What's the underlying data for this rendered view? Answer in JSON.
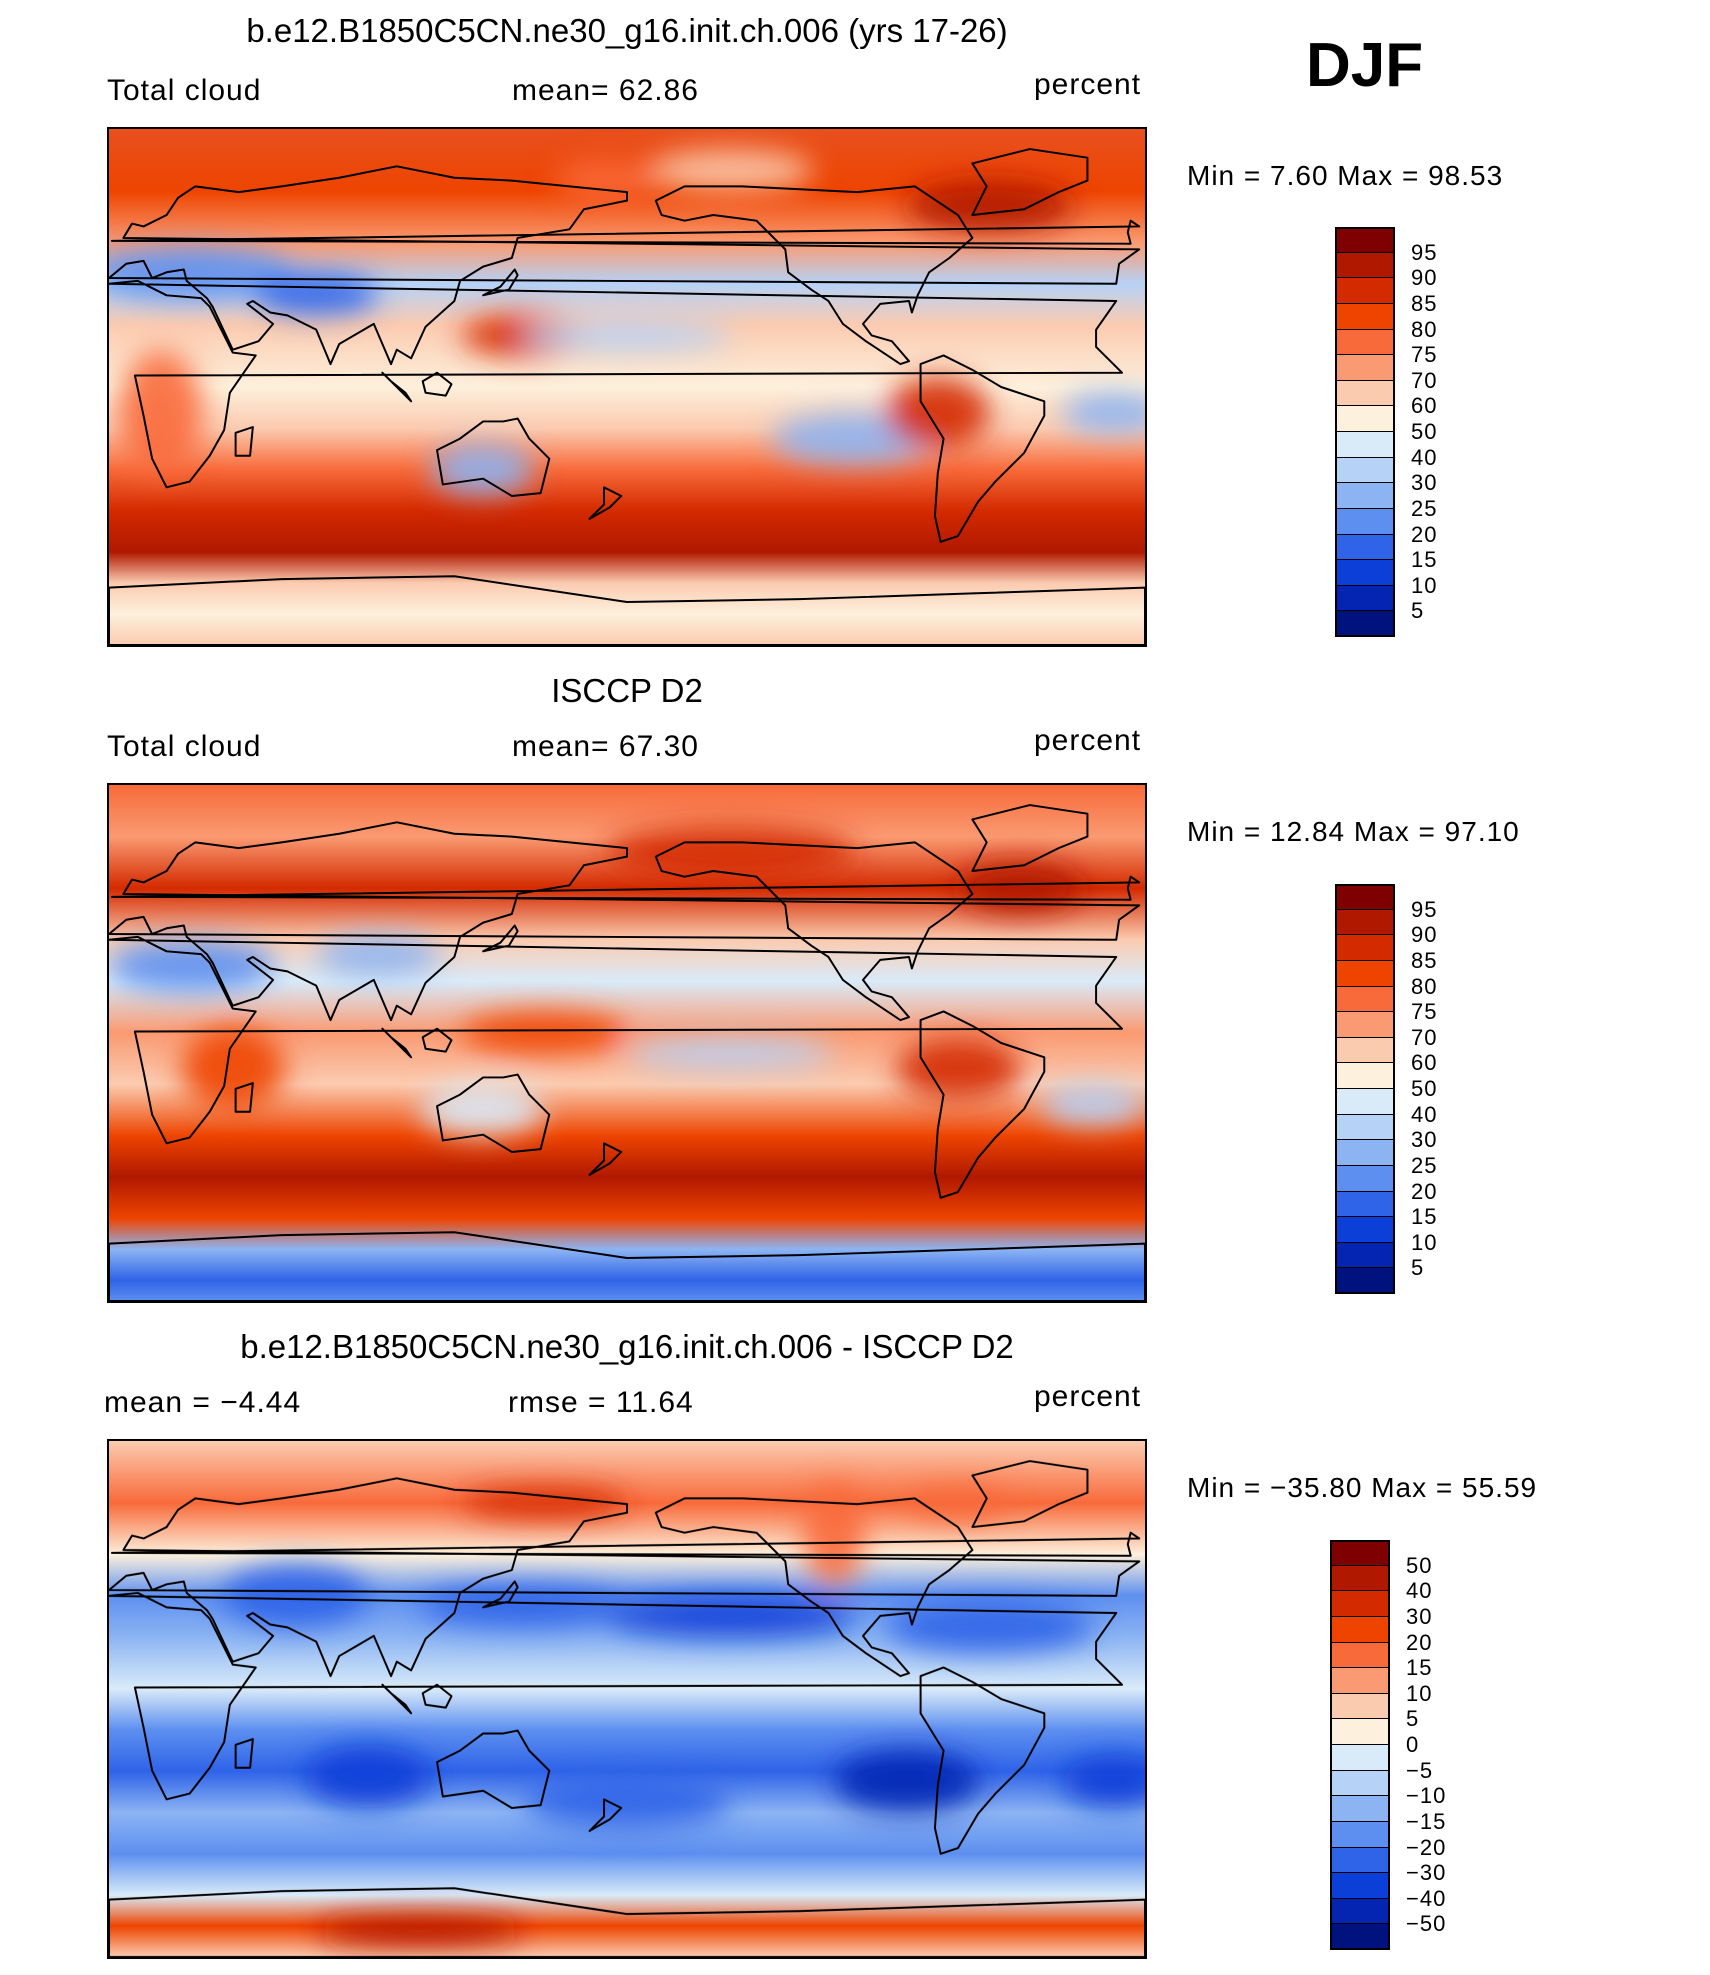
{
  "season": "DJF",
  "panels": [
    {
      "title": "b.e12.B1850C5CN.ne30_g16.init.ch.006 (yrs 17-26)",
      "left_text": "Total cloud",
      "center_text": "mean=   62.86",
      "right_text": "percent",
      "minmax": "Min =   7.60 Max =   98.53",
      "colorbar": {
        "colors": [
          "#7f0000",
          "#b01800",
          "#d42a00",
          "#ee4400",
          "#f86a3a",
          "#fa9a72",
          "#fbcbb0",
          "#fdf0dc",
          "#d9ebf9",
          "#b6d2f7",
          "#8cb4f3",
          "#5d8ff0",
          "#2f63e8",
          "#0c3ed8",
          "#0424b2",
          "#00127e"
        ],
        "labels": [
          "95",
          "90",
          "85",
          "80",
          "75",
          "70",
          "60",
          "50",
          "40",
          "30",
          "25",
          "20",
          "15",
          "10",
          "5"
        ]
      }
    },
    {
      "title": "ISCCP D2",
      "left_text": "Total cloud",
      "center_text": "mean=   67.30",
      "right_text": "percent",
      "minmax": "Min =  12.84 Max =   97.10",
      "colorbar": {
        "colors": [
          "#7f0000",
          "#b01800",
          "#d42a00",
          "#ee4400",
          "#f86a3a",
          "#fa9a72",
          "#fbcbb0",
          "#fdf0dc",
          "#d9ebf9",
          "#b6d2f7",
          "#8cb4f3",
          "#5d8ff0",
          "#2f63e8",
          "#0c3ed8",
          "#0424b2",
          "#00127e"
        ],
        "labels": [
          "95",
          "90",
          "85",
          "80",
          "75",
          "70",
          "60",
          "50",
          "40",
          "30",
          "25",
          "20",
          "15",
          "10",
          "5"
        ]
      }
    },
    {
      "title": "b.e12.B1850C5CN.ne30_g16.init.ch.006 - ISCCP D2",
      "left_text": "mean =  −4.44",
      "center_text": "rmse =  11.64",
      "right_text": "percent",
      "minmax": "Min = −35.80 Max =   55.59",
      "colorbar": {
        "colors": [
          "#7f0000",
          "#b01800",
          "#d42a00",
          "#ee4400",
          "#f86a3a",
          "#fa9a72",
          "#fbcbb0",
          "#fdf0dc",
          "#d9ebf9",
          "#b6d2f7",
          "#8cb4f3",
          "#5d8ff0",
          "#2f63e8",
          "#0c3ed8",
          "#0424b2",
          "#00127e"
        ],
        "labels": [
          "50",
          "40",
          "30",
          "20",
          "15",
          "10",
          "5",
          "0",
          "−5",
          "−10",
          "−15",
          "−20",
          "−30",
          "−40",
          "−50"
        ]
      }
    }
  ],
  "colors": {
    "deep_red": "#7f0000",
    "red": "#d42a00",
    "orange": "#f86a3a",
    "cream": "#fdf0dc",
    "light_blue": "#d9ebf9",
    "blue": "#2f63e8",
    "navy": "#00127e",
    "coast": "#000000"
  }
}
